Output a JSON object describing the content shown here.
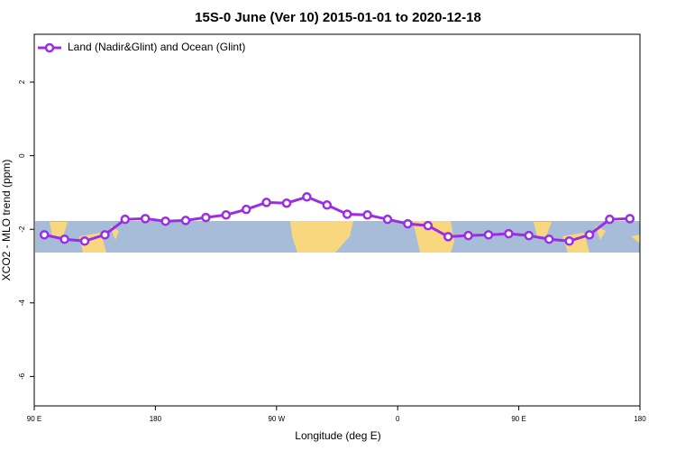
{
  "chart_data": {
    "type": "line",
    "title": "15S-0 June (Ver 10)   2015-01-01 to 2020-12-18",
    "x_label": "Longitude (deg E)",
    "y_label": "XCO2 - MLO trend (ppm)",
    "x": [
      97.5,
      112.5,
      127.5,
      142.5,
      157.5,
      172.5,
      187.5,
      202.5,
      217.5,
      232.5,
      247.5,
      262.5,
      277.5,
      292.5,
      307.5,
      322.5,
      337.5,
      352.5,
      367.5,
      382.5,
      397.5,
      412.5,
      427.5,
      442.5,
      457.5,
      472.5,
      487.5,
      502.5,
      517.5,
      532.5
    ],
    "series": [
      {
        "name": "Land (Nadir&Glint) and Ocean (Glint)",
        "color": "#9b2de3",
        "values": [
          -2.15,
          -2.27,
          -2.32,
          -2.15,
          -1.73,
          -1.71,
          -1.78,
          -1.76,
          -1.68,
          -1.61,
          -1.46,
          -1.27,
          -1.29,
          -1.12,
          -1.34,
          -1.59,
          -1.61,
          -1.73,
          -1.85,
          -1.9,
          -2.2,
          -2.17,
          -2.15,
          -2.12,
          -2.17,
          -2.27,
          -2.32,
          -2.15,
          -1.73,
          -1.71
        ]
      }
    ],
    "xlim": [
      90,
      540
    ],
    "xticks": [
      {
        "value": 90,
        "label": "90 E"
      },
      {
        "value": 180,
        "label": "180"
      },
      {
        "value": 270,
        "label": "90 W"
      },
      {
        "value": 360,
        "label": "0"
      },
      {
        "value": 450,
        "label": "90 E"
      },
      {
        "value": 540,
        "label": "180"
      }
    ],
    "ylim": [
      -6.8,
      3.3
    ],
    "yticks": [
      2,
      0,
      -2,
      -4,
      -6
    ],
    "legend": "top-left"
  }
}
